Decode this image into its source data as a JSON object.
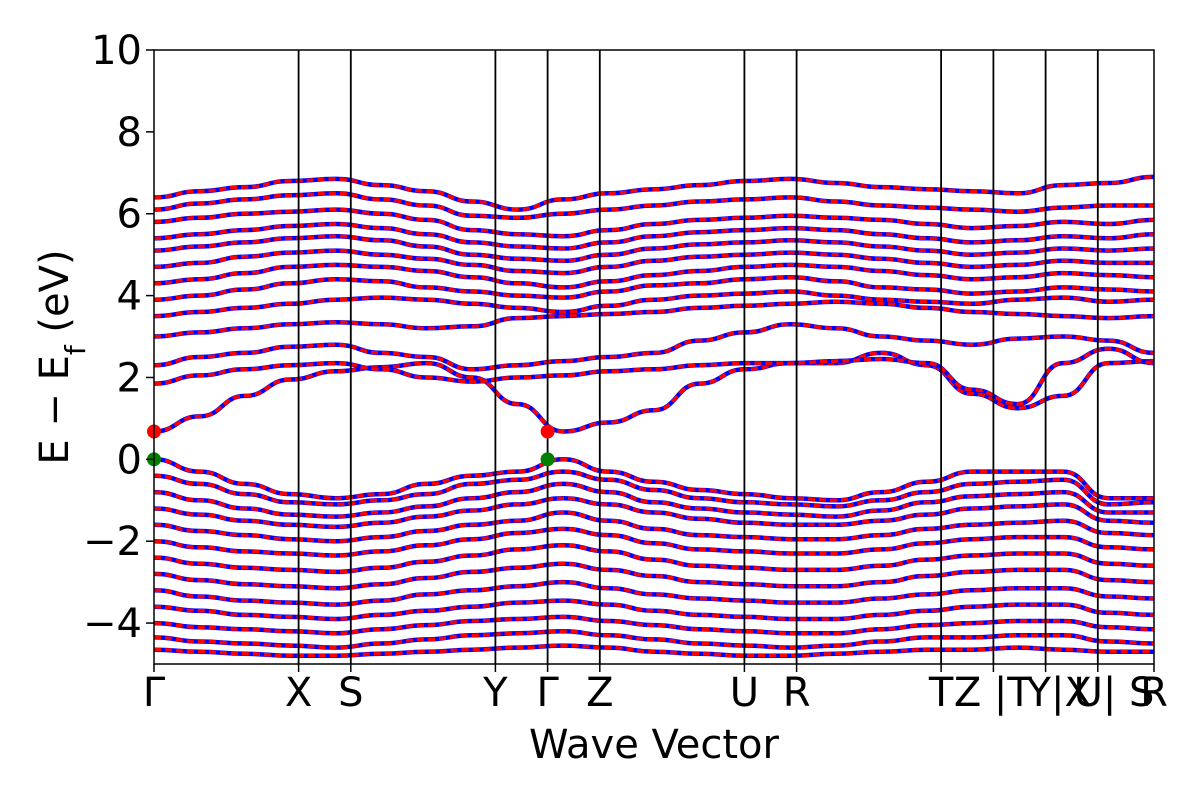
{
  "chart_data": {
    "type": "line",
    "title": "",
    "xlabel": "Wave Vector",
    "ylabel": "E − E",
    "ylabel_subscript": "f",
    "ylabel_unit": " (eV)",
    "ylim": [
      -5,
      10
    ],
    "yticks": [
      -4,
      -2,
      0,
      2,
      4,
      6,
      8,
      10
    ],
    "ytick_labels": [
      "−4",
      "−2",
      "0",
      "2",
      "4",
      "6",
      "8",
      "10"
    ],
    "grid": false,
    "legend": "none",
    "series_colors": {
      "spin_up": "#0000ff",
      "spin_down": "#ff0000",
      "vbm_marker": "#008000",
      "cbm_marker": "#ff0000"
    },
    "kpath": {
      "positions": [
        0,
        0.1446,
        0.1968,
        0.3414,
        0.3936,
        0.4458,
        0.5904,
        0.6426,
        0.7871,
        0.8394,
        0.8916,
        0.9438,
        1.0
      ],
      "labels": [
        "Γ",
        "X",
        "S",
        "Y",
        "Γ",
        "Z",
        "U",
        "R",
        "T",
        "Z",
        "|T",
        "Y|X",
        "U| S",
        "R"
      ],
      "label_positions": [
        0,
        0.1446,
        0.1968,
        0.3414,
        0.3936,
        0.4458,
        0.5904,
        0.6426,
        0.7871,
        0.8136,
        0.8588,
        0.9052,
        0.96,
        1.0
      ]
    },
    "bands": {
      "conduction": [
        [
          0.68,
          1.05,
          1.55,
          1.95,
          2.15,
          2.25,
          2.35,
          2.0,
          1.35,
          0.68,
          0.9,
          1.2,
          1.85,
          2.2,
          2.35,
          2.35,
          2.6,
          2.3,
          1.6,
          1.25,
          1.55,
          2.35,
          2.4
        ],
        [
          1.85,
          2.05,
          2.2,
          2.3,
          2.35,
          2.2,
          2.0,
          1.9,
          2.0,
          2.05,
          2.15,
          2.2,
          2.3,
          2.35,
          2.35,
          2.4,
          2.45,
          2.35,
          1.7,
          1.35,
          2.35,
          2.7,
          2.35
        ],
        [
          2.3,
          2.5,
          2.6,
          2.75,
          2.8,
          2.6,
          2.5,
          2.2,
          2.3,
          2.4,
          2.5,
          2.6,
          2.9,
          3.1,
          3.3,
          3.2,
          3.0,
          2.9,
          2.8,
          2.95,
          3.0,
          2.9,
          2.6
        ],
        [
          3.0,
          3.1,
          3.2,
          3.3,
          3.35,
          3.3,
          3.2,
          3.25,
          3.45,
          3.5,
          3.55,
          3.6,
          3.7,
          3.75,
          3.8,
          3.85,
          3.8,
          3.7,
          3.6,
          3.55,
          3.5,
          3.45,
          3.5
        ],
        [
          3.5,
          3.6,
          3.7,
          3.8,
          3.9,
          3.95,
          3.9,
          3.8,
          3.7,
          3.6,
          3.75,
          3.9,
          4.0,
          4.05,
          4.1,
          4.0,
          3.9,
          3.85,
          3.8,
          3.9,
          3.95,
          3.85,
          3.9
        ],
        [
          3.9,
          4.0,
          4.15,
          4.3,
          4.4,
          4.35,
          4.2,
          4.1,
          4.0,
          3.95,
          4.1,
          4.25,
          4.3,
          4.4,
          4.45,
          4.35,
          4.2,
          4.15,
          4.05,
          4.1,
          4.2,
          4.15,
          4.1
        ],
        [
          4.3,
          4.4,
          4.55,
          4.7,
          4.75,
          4.7,
          4.6,
          4.45,
          4.3,
          4.2,
          4.35,
          4.5,
          4.6,
          4.7,
          4.75,
          4.7,
          4.6,
          4.5,
          4.4,
          4.45,
          4.55,
          4.5,
          4.45
        ],
        [
          4.7,
          4.8,
          4.95,
          5.05,
          5.1,
          5.0,
          4.9,
          4.75,
          4.6,
          4.55,
          4.7,
          4.85,
          4.95,
          5.0,
          5.05,
          5.0,
          4.9,
          4.8,
          4.7,
          4.75,
          4.85,
          4.8,
          4.8
        ],
        [
          5.1,
          5.2,
          5.3,
          5.4,
          5.45,
          5.35,
          5.2,
          5.0,
          4.9,
          4.85,
          5.0,
          5.15,
          5.25,
          5.3,
          5.35,
          5.3,
          5.2,
          5.1,
          5.0,
          5.05,
          5.15,
          5.1,
          5.15
        ],
        [
          5.4,
          5.5,
          5.6,
          5.7,
          5.75,
          5.65,
          5.5,
          5.3,
          5.2,
          5.15,
          5.3,
          5.45,
          5.55,
          5.6,
          5.65,
          5.6,
          5.5,
          5.4,
          5.3,
          5.35,
          5.45,
          5.4,
          5.5
        ],
        [
          5.8,
          5.9,
          6.0,
          6.05,
          6.1,
          6.0,
          5.85,
          5.6,
          5.5,
          5.45,
          5.6,
          5.75,
          5.85,
          5.9,
          5.95,
          5.9,
          5.85,
          5.75,
          5.65,
          5.7,
          5.8,
          5.75,
          5.85
        ],
        [
          6.1,
          6.25,
          6.35,
          6.45,
          6.5,
          6.35,
          6.2,
          5.95,
          5.9,
          6.0,
          6.1,
          6.2,
          6.3,
          6.35,
          6.4,
          6.3,
          6.2,
          6.15,
          6.1,
          6.05,
          6.15,
          6.2,
          6.2
        ],
        [
          6.4,
          6.55,
          6.65,
          6.8,
          6.85,
          6.7,
          6.55,
          6.3,
          6.1,
          6.35,
          6.5,
          6.6,
          6.7,
          6.8,
          6.85,
          6.75,
          6.65,
          6.6,
          6.55,
          6.5,
          6.7,
          6.75,
          6.9
        ]
      ],
      "valence": [
        [
          0.0,
          -0.3,
          -0.6,
          -0.85,
          -0.95,
          -0.85,
          -0.6,
          -0.4,
          -0.3,
          0.0,
          -0.3,
          -0.55,
          -0.75,
          -0.85,
          -0.95,
          -1.0,
          -0.8,
          -0.55,
          -0.3,
          -0.3,
          -0.3,
          -0.95,
          -0.95
        ],
        [
          -0.4,
          -0.6,
          -0.85,
          -1.05,
          -1.1,
          -1.0,
          -0.85,
          -0.6,
          -0.5,
          -0.3,
          -0.5,
          -0.75,
          -0.95,
          -1.05,
          -1.1,
          -1.15,
          -1.0,
          -0.8,
          -0.6,
          -0.55,
          -0.5,
          -1.1,
          -1.05
        ],
        [
          -0.8,
          -1.0,
          -1.2,
          -1.35,
          -1.4,
          -1.3,
          -1.15,
          -0.95,
          -0.8,
          -0.6,
          -0.8,
          -1.05,
          -1.2,
          -1.3,
          -1.35,
          -1.4,
          -1.25,
          -1.05,
          -0.9,
          -0.85,
          -0.8,
          -1.3,
          -1.3
        ],
        [
          -1.2,
          -1.35,
          -1.5,
          -1.6,
          -1.65,
          -1.55,
          -1.4,
          -1.25,
          -1.1,
          -0.95,
          -1.1,
          -1.3,
          -1.45,
          -1.55,
          -1.6,
          -1.6,
          -1.5,
          -1.35,
          -1.2,
          -1.15,
          -1.1,
          -1.5,
          -1.55
        ],
        [
          -1.6,
          -1.75,
          -1.85,
          -1.95,
          -2.0,
          -1.9,
          -1.75,
          -1.6,
          -1.5,
          -1.3,
          -1.5,
          -1.7,
          -1.85,
          -1.9,
          -1.95,
          -1.95,
          -1.85,
          -1.7,
          -1.6,
          -1.55,
          -1.5,
          -1.8,
          -1.85
        ],
        [
          -2.0,
          -2.15,
          -2.25,
          -2.3,
          -2.35,
          -2.25,
          -2.1,
          -1.95,
          -1.8,
          -1.7,
          -1.85,
          -2.05,
          -2.2,
          -2.25,
          -2.3,
          -2.3,
          -2.2,
          -2.05,
          -1.95,
          -1.9,
          -1.9,
          -2.15,
          -2.2
        ],
        [
          -2.4,
          -2.55,
          -2.65,
          -2.7,
          -2.75,
          -2.65,
          -2.5,
          -2.35,
          -2.2,
          -2.1,
          -2.25,
          -2.45,
          -2.6,
          -2.65,
          -2.7,
          -2.7,
          -2.6,
          -2.45,
          -2.35,
          -2.3,
          -2.3,
          -2.55,
          -2.6
        ],
        [
          -2.8,
          -2.95,
          -3.05,
          -3.1,
          -3.15,
          -3.05,
          -2.9,
          -2.75,
          -2.65,
          -2.55,
          -2.7,
          -2.85,
          -3.0,
          -3.05,
          -3.1,
          -3.1,
          -3.0,
          -2.85,
          -2.75,
          -2.7,
          -2.7,
          -2.95,
          -3.0
        ],
        [
          -3.2,
          -3.35,
          -3.45,
          -3.5,
          -3.55,
          -3.45,
          -3.3,
          -3.2,
          -3.1,
          -3.0,
          -3.15,
          -3.3,
          -3.4,
          -3.45,
          -3.5,
          -3.5,
          -3.4,
          -3.3,
          -3.2,
          -3.15,
          -3.15,
          -3.35,
          -3.4
        ],
        [
          -3.6,
          -3.7,
          -3.8,
          -3.85,
          -3.9,
          -3.8,
          -3.7,
          -3.6,
          -3.5,
          -3.45,
          -3.55,
          -3.7,
          -3.8,
          -3.85,
          -3.9,
          -3.9,
          -3.8,
          -3.7,
          -3.6,
          -3.55,
          -3.55,
          -3.75,
          -3.8
        ],
        [
          -4.0,
          -4.1,
          -4.15,
          -4.2,
          -4.25,
          -4.15,
          -4.05,
          -3.95,
          -3.9,
          -3.85,
          -3.95,
          -4.05,
          -4.15,
          -4.2,
          -4.25,
          -4.25,
          -4.15,
          -4.05,
          -4.0,
          -3.95,
          -3.95,
          -4.1,
          -4.15
        ],
        [
          -4.35,
          -4.45,
          -4.5,
          -4.55,
          -4.6,
          -4.5,
          -4.4,
          -4.3,
          -4.25,
          -4.2,
          -4.3,
          -4.4,
          -4.5,
          -4.55,
          -4.6,
          -4.55,
          -4.45,
          -4.35,
          -4.35,
          -4.3,
          -4.3,
          -4.45,
          -4.5
        ],
        [
          -4.65,
          -4.7,
          -4.75,
          -4.8,
          -4.8,
          -4.75,
          -4.7,
          -4.65,
          -4.6,
          -4.55,
          -4.6,
          -4.7,
          -4.75,
          -4.8,
          -4.8,
          -4.75,
          -4.7,
          -4.65,
          -4.65,
          -4.6,
          -4.65,
          -4.7,
          -4.7
        ]
      ]
    },
    "markers": [
      {
        "name": "cbm",
        "k": 0,
        "E": 0.68,
        "color": "#ff0000"
      },
      {
        "name": "cbm",
        "k": 0.3936,
        "E": 0.68,
        "color": "#ff0000"
      },
      {
        "name": "vbm",
        "k": 0,
        "E": 0.0,
        "color": "#008000"
      },
      {
        "name": "vbm",
        "k": 0.3936,
        "E": 0.0,
        "color": "#008000"
      }
    ]
  }
}
